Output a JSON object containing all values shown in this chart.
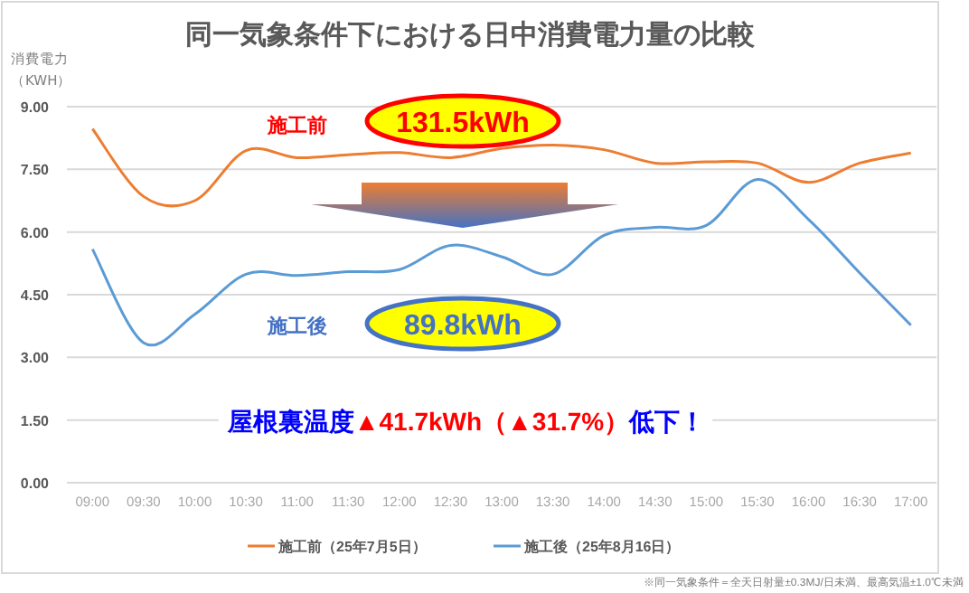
{
  "chart_data": {
    "type": "line",
    "title": "同一気象条件下における日中消費電力量の比較",
    "ylabel": "消費電力（KWH）",
    "categories": [
      "09:00",
      "09:30",
      "10:00",
      "10:30",
      "11:00",
      "11:30",
      "12:00",
      "12:30",
      "13:00",
      "13:30",
      "14:00",
      "14:30",
      "15:00",
      "15:30",
      "16:00",
      "16:30",
      "17:00"
    ],
    "series": [
      {
        "name": "施工前（25年7月5日）",
        "color": "#ed7d31",
        "values": [
          8.47,
          6.85,
          6.75,
          7.95,
          7.78,
          7.85,
          7.9,
          7.78,
          8.0,
          8.08,
          7.97,
          7.65,
          7.68,
          7.65,
          7.19,
          7.65,
          7.89
        ]
      },
      {
        "name": "施工後（25年8月16日）",
        "color": "#5b9bd5",
        "values": [
          5.59,
          3.35,
          4.03,
          4.99,
          4.96,
          5.05,
          5.1,
          5.68,
          5.41,
          4.99,
          5.92,
          6.11,
          6.16,
          7.26,
          6.3,
          5.02,
          3.77
        ]
      }
    ],
    "ylim": [
      0,
      9
    ],
    "yticks": [
      {
        "value": 0,
        "label": "0.00"
      },
      {
        "value": 1.5,
        "label": "1.50"
      },
      {
        "value": 3,
        "label": "3.00"
      },
      {
        "value": 4.5,
        "label": "4.50"
      },
      {
        "value": 6,
        "label": "6.00"
      },
      {
        "value": 7.5,
        "label": "7.50"
      },
      {
        "value": 9,
        "label": "9.00"
      }
    ],
    "grid": "y",
    "legend": "bottom",
    "marker": "none",
    "line_style": "solid",
    "annotations": [
      "施工前",
      "131.5kWh",
      "施工後",
      "89.8kWh",
      "屋根裏温度",
      "▲41.7kWh（▲31.7%）",
      "低下！",
      "※同一気象条件＝全天日射量±0.3MJ/日未満、最高気温±1.0℃未満"
    ]
  }
}
